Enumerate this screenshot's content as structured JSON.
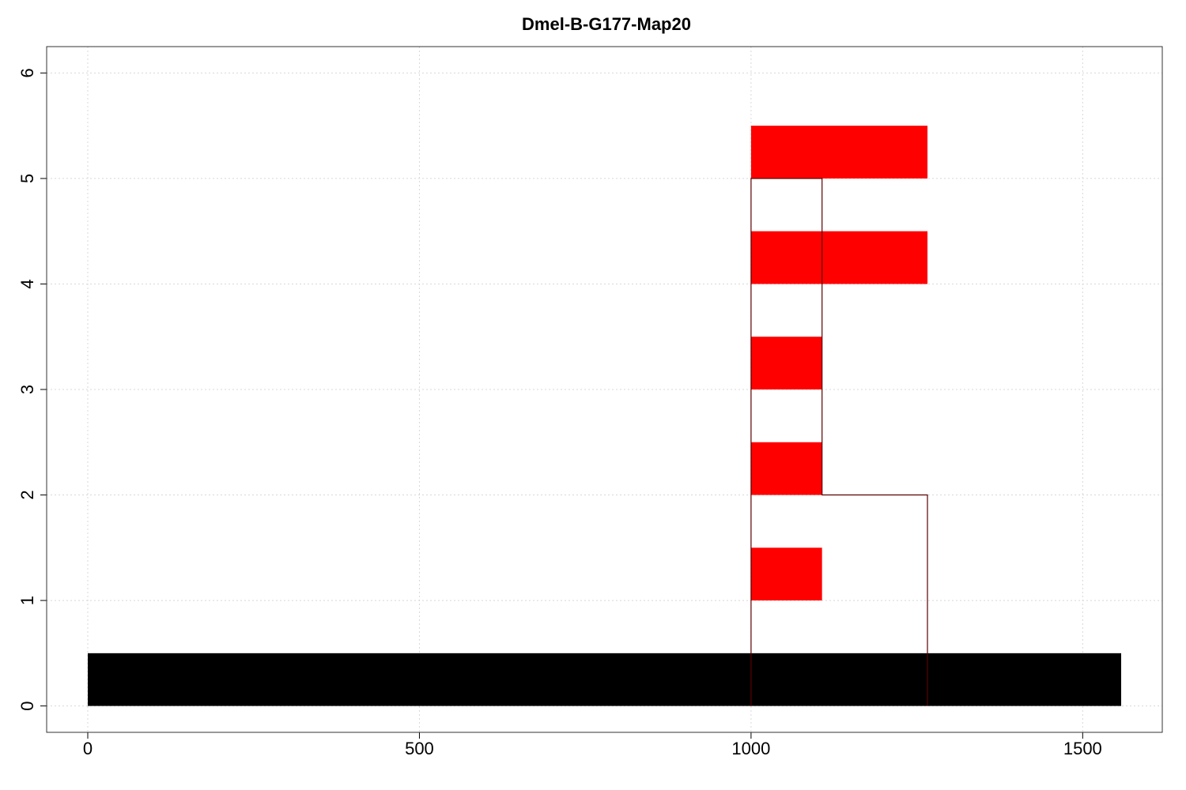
{
  "chart_data": {
    "type": "bar",
    "title": "Dmel-B-G177-Map20",
    "xlabel": "",
    "ylabel": "",
    "xlim": [
      -62,
      1620
    ],
    "ylim": [
      -0.25,
      6.25
    ],
    "x_ticks": [
      0,
      500,
      1000,
      1500
    ],
    "y_ticks": [
      0,
      1,
      2,
      3,
      4,
      5,
      6
    ],
    "grid": true,
    "colors": {
      "reference": "#000000",
      "match": "#ff0000",
      "outline": "#5a0000"
    },
    "reference_bar": {
      "x_start": 0,
      "x_end": 1558,
      "y_bottom": 0,
      "y_top": 0.5
    },
    "segments": [
      {
        "row": 1,
        "x_start": 1000,
        "x_end": 1107,
        "y_bottom": 1,
        "y_top": 1.5
      },
      {
        "row": 2,
        "x_start": 1000,
        "x_end": 1107,
        "y_bottom": 2,
        "y_top": 2.5
      },
      {
        "row": 3,
        "x_start": 1000,
        "x_end": 1107,
        "y_bottom": 3,
        "y_top": 3.5
      },
      {
        "row": 4,
        "x_start": 1000,
        "x_end": 1266,
        "y_bottom": 4,
        "y_top": 4.5
      },
      {
        "row": 5,
        "x_start": 1000,
        "x_end": 1266,
        "y_bottom": 5,
        "y_top": 5.5
      }
    ],
    "coverage_outline": [
      [
        1000,
        0
      ],
      [
        1000,
        5
      ],
      [
        1107,
        5
      ],
      [
        1107,
        2
      ],
      [
        1266,
        2
      ],
      [
        1266,
        0
      ]
    ]
  }
}
